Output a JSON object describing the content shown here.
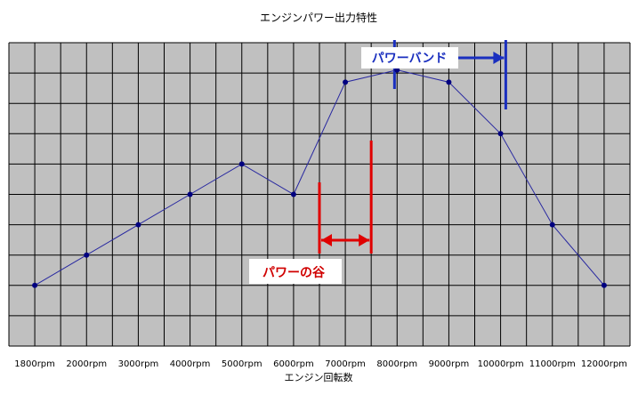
{
  "chart_data": {
    "type": "line",
    "title": "エンジンパワー出力特性",
    "xlabel": "エンジン回転数",
    "ylabel": "",
    "categories": [
      "1800rpm",
      "2000rpm",
      "3000rpm",
      "4000rpm",
      "5000rpm",
      "6000rpm",
      "7000rpm",
      "8000rpm",
      "9000rpm",
      "10000rpm",
      "11000rpm",
      "12000rpm"
    ],
    "series": [
      {
        "values": [
          2,
          3,
          4,
          5,
          6,
          5,
          8.7,
          9.1,
          8.7,
          7,
          4,
          2
        ]
      }
    ],
    "ylim": [
      0,
      10
    ],
    "y_gridlines": 10,
    "grid": true,
    "colors": {
      "plot_bg": "#c0c0c0",
      "grid": "#000000",
      "line": "#2828a0",
      "marker": "#000080",
      "power_band": "#1a2fbf",
      "power_valley": "#e00000"
    },
    "annotations": {
      "power_band": {
        "label": "パワーバンド",
        "from_x": 6.95,
        "to_x": 9.1
      },
      "power_valley": {
        "label": "パワーの谷",
        "from_x": 5.5,
        "to_x": 6.5
      }
    }
  }
}
